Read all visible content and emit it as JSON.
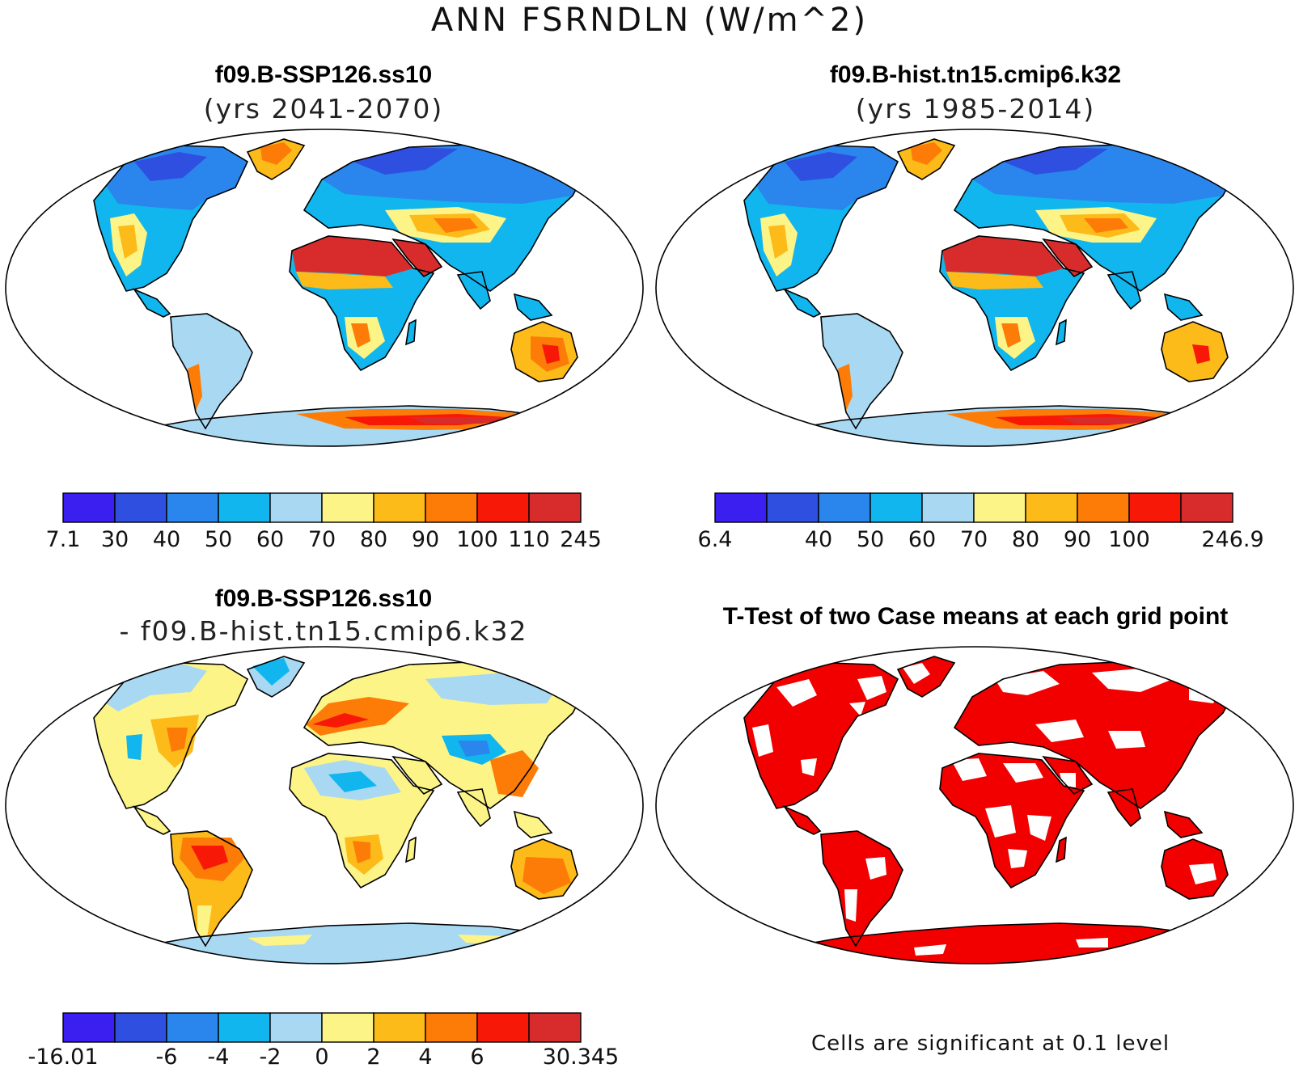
{
  "figure": {
    "title": "ANN FSRNDLN (W/m^2)"
  },
  "panels": {
    "top_left": {
      "title": "f09.B-SSP126.ss10",
      "subtitle": "(yrs 2041-2070)"
    },
    "top_right": {
      "title": "f09.B-hist.tn15.cmip6.k32",
      "subtitle": "(yrs 1985-2014)"
    },
    "bottom_left": {
      "title": "f09.B-SSP126.ss10",
      "subtitle": "- f09.B-hist.tn15.cmip6.k32"
    },
    "bottom_right": {
      "title": "T-Test of two Case means at each grid point",
      "note": "Cells are significant at 0.1 level"
    }
  },
  "colorbars": {
    "colors": [
      "#3b1ef0",
      "#2f4fe0",
      "#2a86ec",
      "#12b6ee",
      "#a8d8f2",
      "#fdf487",
      "#fdbb1a",
      "#fd7c08",
      "#f81808",
      "#d82c2c"
    ],
    "top_left": [
      "7.1",
      "30",
      "40",
      "50",
      "60",
      "70",
      "80",
      "90",
      "100",
      "110",
      "245"
    ],
    "top_right": [
      "6.4",
      "",
      "40",
      "50",
      "60",
      "70",
      "80",
      "90",
      "100",
      "",
      "246.9"
    ],
    "bottom_left": [
      "-16.01",
      "",
      "-6",
      "-4",
      "-2",
      "0",
      "2",
      "4",
      "6",
      "",
      "30.345"
    ]
  },
  "significance_color": "#f20000"
}
